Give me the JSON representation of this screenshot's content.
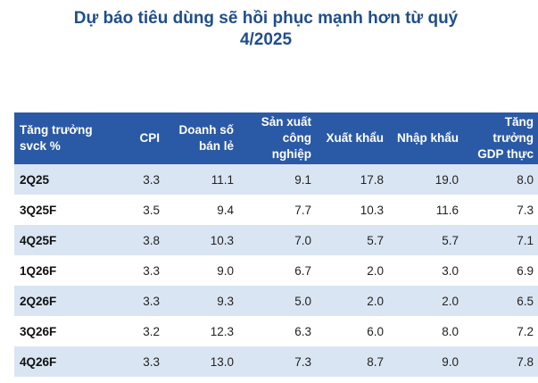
{
  "title": {
    "line1": "Dự báo tiêu dùng sẽ hồi phục mạnh hơn từ quý",
    "line2": "4/2025"
  },
  "colors": {
    "title": "#1f4e8c",
    "header_bg": "#2a5aa6",
    "header_text": "#ffffff",
    "row_shade": "#dae5f3",
    "row_plain": "#ffffff"
  },
  "chart_data": {
    "type": "table",
    "title": "Dự báo tiêu dùng sẽ hồi phục mạnh hơn từ quý 4/2025",
    "columns": [
      [
        "Tăng trưởng",
        "svck %"
      ],
      [
        "CPI"
      ],
      [
        "Doanh số",
        "bán lẻ"
      ],
      [
        "Sản xuất",
        "công nghiệp"
      ],
      [
        "Xuất khẩu"
      ],
      [
        "Nhập khẩu"
      ],
      [
        "Tăng trưởng",
        "GDP thực"
      ]
    ],
    "rows": [
      [
        "2Q25",
        "3.3",
        "11.1",
        "9.1",
        "17.8",
        "19.0",
        "8.0"
      ],
      [
        "3Q25F",
        "3.5",
        "9.4",
        "7.7",
        "10.3",
        "11.6",
        "7.3"
      ],
      [
        "4Q25F",
        "3.8",
        "10.3",
        "7.0",
        "5.7",
        "5.7",
        "7.1"
      ],
      [
        "1Q26F",
        "3.3",
        "9.0",
        "6.7",
        "2.0",
        "3.0",
        "6.9"
      ],
      [
        "2Q26F",
        "3.3",
        "9.3",
        "5.0",
        "2.0",
        "2.0",
        "6.5"
      ],
      [
        "3Q26F",
        "3.2",
        "12.3",
        "6.3",
        "6.0",
        "8.0",
        "7.2"
      ],
      [
        "4Q26F",
        "3.3",
        "13.0",
        "7.3",
        "8.7",
        "9.0",
        "7.8"
      ]
    ]
  }
}
